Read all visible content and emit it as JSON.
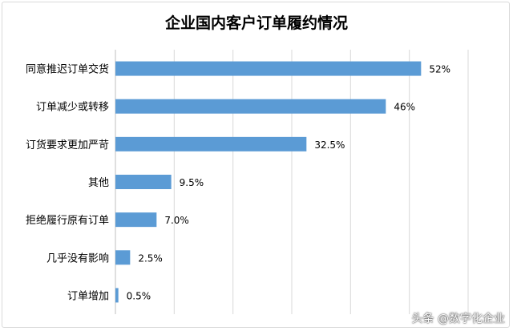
{
  "chart_data": {
    "type": "bar",
    "orientation": "horizontal",
    "title": "企业国内客户订单履约情况",
    "categories": [
      "同意推迟订单交货",
      "订单减少或转移",
      "订货要求更加严苛",
      "其他",
      "拒绝履行原有订单",
      "几乎没有影响",
      "订单增加"
    ],
    "values": [
      52,
      46,
      32.5,
      9.5,
      7.0,
      2.5,
      0.5
    ],
    "value_labels": [
      "52%",
      "46%",
      "32.5%",
      "9.5%",
      "7.0%",
      "2.5%",
      "0.5%"
    ],
    "xlim": [
      0,
      60
    ],
    "grid": true,
    "bar_color": "#5b9bd5"
  },
  "watermark": "头条 @数字化企业"
}
